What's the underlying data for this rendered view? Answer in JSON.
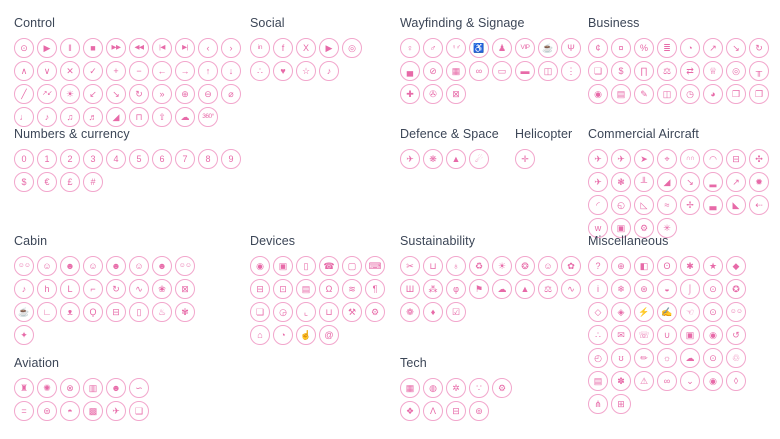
{
  "colors": {
    "background": "#ffffff",
    "heading_text": "#3c4657",
    "icon_stroke": "#e76aa8",
    "icon_circle_border": "#f2a6cc"
  },
  "sections": [
    {
      "id": "control",
      "title": "Control",
      "icons": [
        [
          "power",
          "⊙"
        ],
        [
          "play",
          "▶"
        ],
        [
          "pause",
          "‖"
        ],
        [
          "stop",
          "■"
        ],
        [
          "fast-forward",
          "▶▶"
        ],
        [
          "rewind",
          "◀◀"
        ],
        [
          "skip-previous",
          "|◀"
        ],
        [
          "skip-next",
          "▶|"
        ],
        [
          "chevron-left",
          "‹"
        ],
        [
          "chevron-right",
          "›"
        ],
        [
          "chevron-up",
          "∧"
        ],
        [
          "chevron-down",
          "∨"
        ],
        [
          "close",
          "✕"
        ],
        [
          "check",
          "✓"
        ],
        [
          "plus",
          "+"
        ],
        [
          "minus",
          "−"
        ],
        [
          "arrow-left",
          "←"
        ],
        [
          "arrow-right",
          "→"
        ],
        [
          "arrow-up",
          "↑"
        ],
        [
          "arrow-down",
          "↓"
        ],
        [
          "fullscreen",
          "╱"
        ],
        [
          "minimize",
          "↗↙"
        ],
        [
          "brightness",
          "☀"
        ],
        [
          "arrow-down-left",
          "↙"
        ],
        [
          "arrow-down-right",
          "↘"
        ],
        [
          "redo",
          "↻"
        ],
        [
          "double-chevron-right",
          "»"
        ],
        [
          "zoom-in",
          "⊕"
        ],
        [
          "zoom-out",
          "⊖"
        ],
        [
          "search",
          "⌀"
        ],
        [
          "volume-mute",
          "♩"
        ],
        [
          "volume-low",
          "♪"
        ],
        [
          "volume-medium",
          "♫"
        ],
        [
          "volume-high",
          "♬"
        ],
        [
          "volume-slider",
          "◢"
        ],
        [
          "lock",
          "⊓"
        ],
        [
          "upload",
          "⇧"
        ],
        [
          "cloud-download",
          "☁"
        ],
        [
          "rotate-360",
          "360°"
        ]
      ]
    },
    {
      "id": "social",
      "title": "Social",
      "icons": [
        [
          "linkedin",
          "in"
        ],
        [
          "facebook",
          "f"
        ],
        [
          "x-twitter",
          "X"
        ],
        [
          "youtube",
          "▶"
        ],
        [
          "instagram",
          "◎"
        ],
        [
          "share",
          "∴"
        ],
        [
          "heart",
          "♥"
        ],
        [
          "star",
          "☆"
        ],
        [
          "tiktok",
          "♪"
        ]
      ]
    },
    {
      "id": "wayfinding",
      "title": "Wayfinding & Signage",
      "icons": [
        [
          "woman",
          "♀"
        ],
        [
          "man",
          "♂"
        ],
        [
          "restrooms",
          "♀♂"
        ],
        [
          "wheelchair-access",
          "♿"
        ],
        [
          "adult-and-child",
          "♟"
        ],
        [
          "vip",
          "VIP"
        ],
        [
          "cafe",
          "☕"
        ],
        [
          "restaurant",
          "Ψ"
        ],
        [
          "hotel",
          "▄"
        ],
        [
          "no-smoking",
          "⊘"
        ],
        [
          "train",
          "▦"
        ],
        [
          "bicycle",
          "∞"
        ],
        [
          "shuttle",
          "▭"
        ],
        [
          "car",
          "▬"
        ],
        [
          "taxi",
          "◫"
        ],
        [
          "traffic-light",
          "⋮"
        ],
        [
          "first-aid",
          "✚"
        ],
        [
          "fire-extinguisher",
          "✇"
        ],
        [
          "gift",
          "⊠"
        ]
      ]
    },
    {
      "id": "business",
      "title": "Business",
      "icons": [
        [
          "coins",
          "¢"
        ],
        [
          "money-increase",
          "¤"
        ],
        [
          "percentage-chart",
          "%"
        ],
        [
          "cash-bundle",
          "≣"
        ],
        [
          "pie-chart",
          "◔"
        ],
        [
          "growth-chart",
          "↗"
        ],
        [
          "decline-chart",
          "↘"
        ],
        [
          "money-cycle",
          "↻"
        ],
        [
          "invoices",
          "❏"
        ],
        [
          "money-bag",
          "$"
        ],
        [
          "bank",
          "∏"
        ],
        [
          "scales",
          "⚖"
        ],
        [
          "currency-exchange",
          "⇄"
        ],
        [
          "crown",
          "♕"
        ],
        [
          "target-arrow",
          "◎"
        ],
        [
          "organization",
          "╥"
        ],
        [
          "focus-target",
          "◉"
        ],
        [
          "report",
          "▤"
        ],
        [
          "briefcase-edit",
          "✎"
        ],
        [
          "presentation-chart",
          "◫"
        ],
        [
          "speedometer",
          "◷"
        ],
        [
          "time-pie",
          "◕"
        ],
        [
          "folder",
          "❒"
        ],
        [
          "contract",
          "❐"
        ]
      ]
    },
    {
      "id": "numbers",
      "title": "Numbers & currency",
      "icons": [
        [
          "number-0",
          "0"
        ],
        [
          "number-1",
          "1"
        ],
        [
          "number-2",
          "2"
        ],
        [
          "number-3",
          "3"
        ],
        [
          "number-4",
          "4"
        ],
        [
          "number-5",
          "5"
        ],
        [
          "number-6",
          "6"
        ],
        [
          "number-7",
          "7"
        ],
        [
          "number-8",
          "8"
        ],
        [
          "number-9",
          "9"
        ],
        [
          "dollar",
          "$"
        ],
        [
          "euro",
          "€"
        ],
        [
          "pound",
          "£"
        ],
        [
          "hash",
          "#"
        ]
      ]
    },
    {
      "id": "defence",
      "title": "Defence & Space",
      "icons": [
        [
          "fighter-jet",
          "✈"
        ],
        [
          "satellite",
          "❋"
        ],
        [
          "rocket",
          "▲"
        ],
        [
          "space-orbit",
          "☄"
        ]
      ]
    },
    {
      "id": "helicopter",
      "title": "Helicopter",
      "icons": [
        [
          "helicopter",
          "✛"
        ]
      ]
    },
    {
      "id": "commercial",
      "title": "Commercial Aircraft",
      "icons": [
        [
          "plane-takeoff",
          "✈"
        ],
        [
          "plane-front",
          "✈"
        ],
        [
          "plane-fast",
          "➤"
        ],
        [
          "plane-location",
          "⌖"
        ],
        [
          "cabin-interior",
          "∩∩"
        ],
        [
          "cockpit-window",
          "◠"
        ],
        [
          "plane-rear",
          "⊟"
        ],
        [
          "plane-top",
          "✣"
        ],
        [
          "plane-side",
          "✈"
        ],
        [
          "jet-turbine",
          "❃"
        ],
        [
          "landing-gear",
          "╨"
        ],
        [
          "tail-livery",
          "◢"
        ],
        [
          "plane-landing",
          "↘"
        ],
        [
          "plane-runway",
          "▂"
        ],
        [
          "plane-climb",
          "↗"
        ],
        [
          "turbofan",
          "✹"
        ],
        [
          "winglet",
          "◜"
        ],
        [
          "wing-view-window",
          "◵"
        ],
        [
          "wing-flap",
          "◺"
        ],
        [
          "plane-gliding",
          "≈"
        ],
        [
          "propeller-plane",
          "✢"
        ],
        [
          "plane-transport",
          "▃"
        ],
        [
          "tail-fin",
          "◣"
        ],
        [
          "plane-pushback",
          "⇠"
        ],
        [
          "bird-strike",
          "w"
        ],
        [
          "cargo-loading",
          "▣"
        ],
        [
          "engine-maintenance",
          "⚙"
        ],
        [
          "propeller",
          "✳"
        ]
      ]
    },
    {
      "id": "cabin",
      "title": "Cabin",
      "icons": [
        [
          "crew-group",
          "☺☺"
        ],
        [
          "passenger",
          "☺"
        ],
        [
          "passenger-seated",
          "☻"
        ],
        [
          "passenger-recline",
          "☺"
        ],
        [
          "passenger-cabin",
          "☻"
        ],
        [
          "passenger-sleeping",
          "☺"
        ],
        [
          "flight-attendant",
          "☻"
        ],
        [
          "passengers-pair",
          "☺☺"
        ],
        [
          "headset-service",
          "♪"
        ],
        [
          "seat",
          "h"
        ],
        [
          "seat-extra-legroom",
          "L"
        ],
        [
          "seat-workspace",
          "⌐"
        ],
        [
          "seat-swivel",
          "↻"
        ],
        [
          "seat-wifi",
          "∿"
        ],
        [
          "lotus-wellbeing",
          "❀"
        ],
        [
          "do-not-disturb",
          "⊠"
        ],
        [
          "tea-service",
          "☕"
        ],
        [
          "recliner-seat",
          "∟"
        ],
        [
          "pet-onboard",
          "ᴥ"
        ],
        [
          "kids-balloon",
          "Ϙ"
        ],
        [
          "seatback-screen",
          "⊟"
        ],
        [
          "carry-on-luggage",
          "▯"
        ],
        [
          "meal-service",
          "♨"
        ],
        [
          "fresh-amenity",
          "✾"
        ],
        [
          "reading-light",
          "✦"
        ]
      ]
    },
    {
      "id": "devices",
      "title": "Devices",
      "icons": [
        [
          "camera",
          "◉"
        ],
        [
          "video-camera",
          "▣"
        ],
        [
          "smartphone",
          "▯"
        ],
        [
          "mobile-phone",
          "☎"
        ],
        [
          "television",
          "▢"
        ],
        [
          "laptop",
          "⌨"
        ],
        [
          "printer",
          "⊟"
        ],
        [
          "floppy-disk",
          "⊡"
        ],
        [
          "server",
          "▤"
        ],
        [
          "headphones",
          "Ω"
        ],
        [
          "wifi",
          "≋"
        ],
        [
          "microphone",
          "¶"
        ],
        [
          "document",
          "❏"
        ],
        [
          "stopwatch",
          "◶"
        ],
        [
          "shopping-cart",
          "⌞"
        ],
        [
          "trash-bin",
          "⊔"
        ],
        [
          "wrench",
          "⚒"
        ],
        [
          "gears",
          "⚙"
        ],
        [
          "smart-home",
          "⌂"
        ],
        [
          "clock",
          "◔"
        ],
        [
          "thumb-up",
          "☝"
        ],
        [
          "at-sign",
          "@"
        ]
      ]
    },
    {
      "id": "sustainability",
      "title": "Sustainability",
      "icons": [
        [
          "reduce-waste",
          "✂"
        ],
        [
          "waste-bin",
          "⊔"
        ],
        [
          "planet-care",
          "♁"
        ],
        [
          "biofuel",
          "♻"
        ],
        [
          "solar",
          "☀"
        ],
        [
          "green-tech",
          "❂"
        ],
        [
          "responsibility",
          "☺"
        ],
        [
          "eco-friendly",
          "✿"
        ],
        [
          "clean-industry",
          "Ш"
        ],
        [
          "wildlife",
          "⁂"
        ],
        [
          "green-key",
          "φ"
        ],
        [
          "eco-direction",
          "⚑"
        ],
        [
          "emissions",
          "☁"
        ],
        [
          "land-preservation",
          "▲"
        ],
        [
          "climate-balance",
          "⚖"
        ],
        [
          "wind-energy",
          "∿"
        ],
        [
          "organic-produce",
          "❁"
        ],
        [
          "water-conservation",
          "♦"
        ],
        [
          "certified",
          "☑"
        ]
      ]
    },
    {
      "id": "miscellaneous",
      "title": "Miscellaneous",
      "icons": [
        [
          "question",
          "?"
        ],
        [
          "globe",
          "⊕"
        ],
        [
          "doorway",
          "◧"
        ],
        [
          "lightbulb",
          "ʘ"
        ],
        [
          "cell-culture",
          "✱"
        ],
        [
          "favorite-star",
          "★"
        ],
        [
          "graduation-cap",
          "◆"
        ],
        [
          "information",
          "i"
        ],
        [
          "snowflake",
          "❄"
        ],
        [
          "lifebuoy",
          "⊛"
        ],
        [
          "service-bell",
          "◒"
        ],
        [
          "thermometer",
          "⌡"
        ],
        [
          "eye",
          "⊙"
        ],
        [
          "award-medal",
          "✪"
        ],
        [
          "price-tag",
          "◇"
        ],
        [
          "label-tag",
          "◈"
        ],
        [
          "lightning",
          "⚡"
        ],
        [
          "hand-writing",
          "✍"
        ],
        [
          "gentle-hand",
          "☜"
        ],
        [
          "eye-visibility",
          "⊙"
        ],
        [
          "community",
          "☺☺"
        ],
        [
          "share-nodes",
          "∴"
        ],
        [
          "envelope",
          "✉"
        ],
        [
          "phone-vibrate",
          "☏"
        ],
        [
          "trophy",
          "∪"
        ],
        [
          "camera-retro",
          "▣"
        ],
        [
          "eye-open",
          "◉"
        ],
        [
          "refresh",
          "↺"
        ],
        [
          "countdown-timer",
          "◴"
        ],
        [
          "handbag",
          "ʊ"
        ],
        [
          "marker-pen",
          "✏"
        ],
        [
          "speaker-person",
          "☼"
        ],
        [
          "horizon-cloud",
          "☁"
        ],
        [
          "eye-view",
          "⊙"
        ],
        [
          "recycle-outline",
          "♲"
        ],
        [
          "report-chart",
          "▤"
        ],
        [
          "bouquet",
          "✽"
        ],
        [
          "warning",
          "⚠"
        ],
        [
          "spectacles",
          "∞"
        ],
        [
          "book",
          "⌄"
        ],
        [
          "eye-scan",
          "◉"
        ],
        [
          "droplet",
          "◊"
        ],
        [
          "connections",
          "⋔"
        ],
        [
          "calendar",
          "⊞"
        ]
      ]
    },
    {
      "id": "aviation",
      "title": "Aviation",
      "icons": [
        [
          "control-tower",
          "♜"
        ],
        [
          "jet-engine",
          "✺"
        ],
        [
          "radar",
          "⊗"
        ],
        [
          "luggage-trolley",
          "▥"
        ],
        [
          "pilot",
          "☻"
        ],
        [
          "wing-aerodynamics",
          "∽"
        ],
        [
          "runway",
          "="
        ],
        [
          "global-routes",
          "⊜"
        ],
        [
          "radar-sweep",
          "◓"
        ],
        [
          "ground-operations",
          "▩"
        ],
        [
          "aircraft-handling",
          "✈"
        ],
        [
          "boarding-pass",
          "❑"
        ]
      ]
    },
    {
      "id": "tech",
      "title": "Tech",
      "icons": [
        [
          "ai-brain",
          "▦"
        ],
        [
          "mesh-network",
          "◍"
        ],
        [
          "molecule",
          "✲"
        ],
        [
          "collaboration",
          "∵"
        ],
        [
          "settings-gear",
          "⚙"
        ],
        [
          "cube-3d",
          "❖"
        ],
        [
          "precision-compass",
          "Λ"
        ],
        [
          "autonomous-car",
          "⊟"
        ],
        [
          "data-sphere",
          "⊚"
        ]
      ]
    }
  ]
}
